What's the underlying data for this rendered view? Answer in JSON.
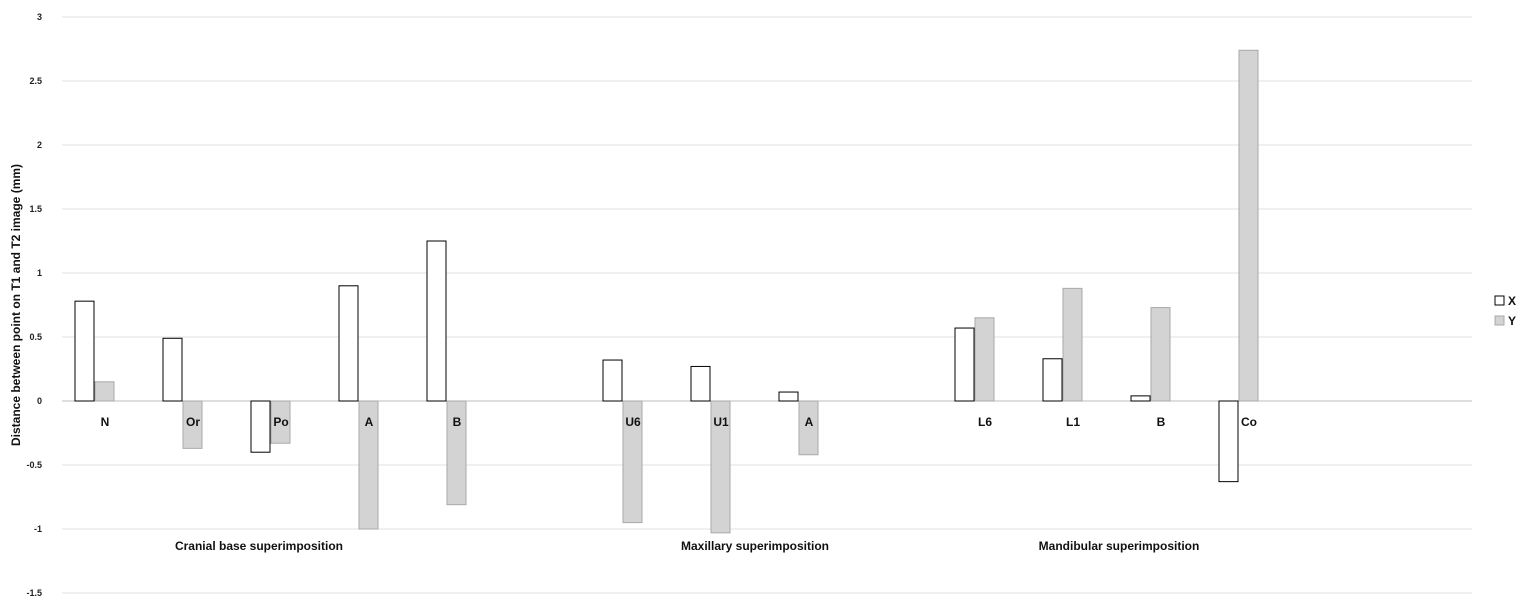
{
  "chart_data": {
    "type": "bar",
    "ylabel": "Distance between point on T1 and T2 image (mm)",
    "ylim": [
      -1.5,
      3
    ],
    "yticks": [
      -1.5,
      -1,
      -0.5,
      0,
      0.5,
      1,
      1.5,
      2,
      2.5,
      3
    ],
    "grid": true,
    "legend_position": "right",
    "groups": [
      {
        "label": "Cranial base superimposition",
        "categories": [
          "N",
          "Or",
          "Po",
          "A",
          "B"
        ]
      },
      {
        "label": "Maxillary superimposition",
        "categories": [
          "U6",
          "U1",
          "A"
        ]
      },
      {
        "label": "Mandibular superimposition",
        "categories": [
          "L6",
          "L1",
          "B",
          "Co"
        ]
      }
    ],
    "categories": [
      "N",
      "Or",
      "Po",
      "A",
      "B",
      "",
      "U6",
      "U1",
      "A",
      "",
      "L6",
      "L1",
      "B",
      "Co"
    ],
    "series": [
      {
        "name": "X",
        "color": "#ffffff",
        "values": [
          0.78,
          0.49,
          -0.4,
          0.9,
          1.25,
          null,
          0.32,
          0.27,
          0.07,
          null,
          0.57,
          0.33,
          0.04,
          -0.63
        ]
      },
      {
        "name": "Y",
        "color": "#d3d3d3",
        "values": [
          0.15,
          -0.37,
          -0.33,
          -1.0,
          -0.81,
          null,
          -0.95,
          -1.03,
          -0.42,
          null,
          0.65,
          0.88,
          0.73,
          2.74
        ]
      }
    ]
  }
}
